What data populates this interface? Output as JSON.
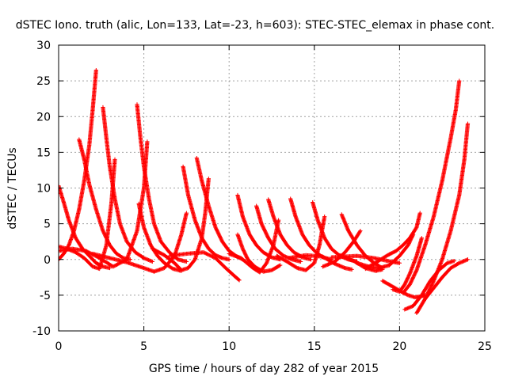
{
  "chart_data": {
    "type": "scatter",
    "title": "dSTEC Iono. truth (alic, Lon=133, Lat=-23, h=603): STEC-STEC_elemax in phase cont.",
    "xlabel": "GPS time / hours of day 282 of year 2015",
    "ylabel": "dSTEC  / TECUs",
    "xlim": [
      0,
      25
    ],
    "ylim": [
      -10,
      30
    ],
    "xticks": [
      0,
      5,
      10,
      15,
      20,
      25
    ],
    "yticks": [
      -10,
      -5,
      0,
      5,
      10,
      15,
      20,
      25,
      30
    ],
    "grid": true,
    "marker": "plus",
    "color": "#ff0000",
    "series": [
      {
        "x": [
          0,
          0.3,
          0.6,
          0.9,
          1.2,
          1.5,
          1.8,
          2.0,
          2.2
        ],
        "y": [
          0,
          0.8,
          2,
          4,
          7,
          11,
          16,
          21,
          26.5
        ]
      },
      {
        "x": [
          0,
          0.3,
          0.6,
          1.0,
          1.4,
          1.8,
          2.2,
          2.6,
          3.0
        ],
        "y": [
          10.3,
          8,
          5.5,
          3,
          1.5,
          0.5,
          -0.5,
          -1,
          -1.2
        ]
      },
      {
        "x": [
          1.2,
          1.5,
          1.8,
          2.2,
          2.6,
          3.0,
          3.4,
          3.8,
          4.2
        ],
        "y": [
          16.8,
          14,
          10.5,
          7,
          4,
          2,
          0.8,
          0.2,
          0
        ]
      },
      {
        "x": [
          2.6,
          2.8,
          3.0,
          3.3,
          3.6,
          4.0,
          4.5,
          5.0,
          5.5
        ],
        "y": [
          21.3,
          17,
          13,
          8.5,
          5,
          2.5,
          1,
          0.2,
          -0.3
        ]
      },
      {
        "x": [
          0,
          0.5,
          1.0,
          1.5,
          2.0,
          2.4,
          2.8,
          3.1,
          3.3
        ],
        "y": [
          1.8,
          1.5,
          1.0,
          0.2,
          -1,
          -1.3,
          2,
          8,
          14
        ]
      },
      {
        "x": [
          0,
          0.8,
          1.6,
          2.4,
          3.2,
          4.0,
          4.6,
          5.0,
          5.2
        ],
        "y": [
          1.2,
          1.5,
          1.2,
          0.2,
          -1,
          0,
          4,
          10,
          16.5
        ]
      },
      {
        "x": [
          4.6,
          4.8,
          5.0,
          5.3,
          5.6,
          6.0,
          6.5,
          7.0,
          7.5
        ],
        "y": [
          21.7,
          17,
          13,
          8.5,
          5,
          2.5,
          1,
          0,
          -0.3
        ]
      },
      {
        "x": [
          4.7,
          5.0,
          5.4,
          5.8,
          6.2,
          6.7,
          7.2
        ],
        "y": [
          7.8,
          4.5,
          2,
          0.5,
          -0.5,
          -1.3,
          -1.6
        ]
      },
      {
        "x": [
          2.0,
          3.0,
          4.0,
          5.0,
          5.6,
          6.2,
          6.8,
          7.2,
          7.5
        ],
        "y": [
          0.8,
          0.2,
          -0.4,
          -1.2,
          -1.7,
          -1.2,
          0.5,
          3.5,
          6.5
        ]
      },
      {
        "x": [
          7.3,
          7.6,
          8.0,
          8.4,
          8.8,
          9.2,
          9.6,
          10.0
        ],
        "y": [
          13,
          9,
          5.5,
          3,
          1.5,
          0.6,
          0.2,
          0
        ]
      },
      {
        "x": [
          8.1,
          8.4,
          8.8,
          9.2,
          9.6,
          10.0,
          10.4,
          10.8
        ],
        "y": [
          14.2,
          11,
          7.5,
          4.5,
          2.5,
          1.2,
          0.5,
          0
        ]
      },
      {
        "x": [
          5.5,
          6.2,
          6.8,
          7.2,
          7.6,
          8.0,
          8.4,
          8.6,
          8.8
        ],
        "y": [
          1.5,
          0.6,
          -0.5,
          -1.5,
          -1.2,
          0,
          3,
          6.5,
          11.3
        ]
      },
      {
        "x": [
          6.5,
          7.5,
          8.5,
          9.2,
          9.8,
          10.4,
          10.6
        ],
        "y": [
          0.5,
          0.8,
          1,
          0.2,
          -1.2,
          -2.5,
          -2.9
        ]
      },
      {
        "x": [
          10.5,
          10.8,
          11.2,
          11.6,
          12.0,
          12.5,
          13.0
        ],
        "y": [
          9,
          6,
          3.5,
          2,
          1,
          0.3,
          0
        ]
      },
      {
        "x": [
          10.5,
          10.8,
          11.1,
          11.5,
          12.0,
          12.5,
          13.0
        ],
        "y": [
          3.5,
          1.5,
          0,
          -1,
          -1.7,
          -1.5,
          -0.8
        ]
      },
      {
        "x": [
          11.6,
          11.9,
          12.3,
          12.7,
          13.2,
          13.7,
          14.2
        ],
        "y": [
          7.5,
          5,
          3,
          1.5,
          0.5,
          0,
          -0.3
        ]
      },
      {
        "x": [
          12.3,
          12.6,
          13.0,
          13.4,
          13.8,
          14.3,
          14.8
        ],
        "y": [
          8.4,
          6,
          3.5,
          2,
          1,
          0.3,
          0
        ]
      },
      {
        "x": [
          10.0,
          10.7,
          11.4,
          11.8,
          12.2,
          12.6,
          12.9
        ],
        "y": [
          0.8,
          0.2,
          -1.2,
          -1.8,
          -0.5,
          2,
          5.5
        ]
      },
      {
        "x": [
          13.6,
          13.9,
          14.3,
          14.7,
          15.1,
          15.5,
          16.0
        ],
        "y": [
          8.5,
          6,
          3.5,
          2,
          1,
          0.3,
          0
        ]
      },
      {
        "x": [
          12.8,
          13.4,
          14.0,
          14.5,
          15.0,
          15.3,
          15.6
        ],
        "y": [
          0.5,
          -0.3,
          -1.2,
          -1.5,
          -0.5,
          2,
          6
        ]
      },
      {
        "x": [
          14.9,
          15.2,
          15.6,
          16.0,
          16.5,
          17.0,
          17.5
        ],
        "y": [
          8,
          5.5,
          3,
          1.5,
          0.5,
          0,
          -0.3
        ]
      },
      {
        "x": [
          13.5,
          14.5,
          15.5,
          16.2,
          16.8,
          17.2
        ],
        "y": [
          0.2,
          0.6,
          0.4,
          -0.6,
          -1.2,
          -1.4
        ]
      },
      {
        "x": [
          16.6,
          17.0,
          17.5,
          18.0,
          18.5,
          19.0
        ],
        "y": [
          6.3,
          4,
          2,
          0.5,
          -0.5,
          -1.2
        ]
      },
      {
        "x": [
          15.5,
          16.2,
          16.8,
          17.3,
          17.7
        ],
        "y": [
          -1,
          -0.3,
          1,
          2.5,
          4
        ]
      },
      {
        "x": [
          16.5,
          17.3,
          18.0,
          18.6,
          19.0
        ],
        "y": [
          0.6,
          -0.2,
          -1.2,
          -1.6,
          -1.4
        ]
      },
      {
        "x": [
          17.5,
          18.2,
          18.8,
          19.4,
          20.0,
          20.5,
          20.8
        ],
        "y": [
          -0.5,
          -1,
          -1.2,
          -0.8,
          0.5,
          2,
          3.5
        ]
      },
      {
        "x": [
          16.0,
          17.5,
          18.5,
          19.5,
          20.0
        ],
        "y": [
          0.3,
          0.5,
          0.2,
          -0.3,
          -0.5
        ]
      },
      {
        "x": [
          18.0,
          18.7,
          19.3,
          19.8,
          20.2,
          20.6,
          21.0,
          21.2
        ],
        "y": [
          -1.3,
          -0.3,
          0.6,
          1.2,
          2,
          3,
          4.5,
          6.5
        ]
      },
      {
        "x": [
          19.0,
          19.6,
          20.1,
          20.5,
          20.9,
          21.2,
          21.5
        ],
        "y": [
          -3,
          -3.8,
          -4.5,
          -5,
          -5.3,
          -5.2,
          -5
        ]
      },
      {
        "x": [
          19.6,
          20.0,
          20.3,
          20.6,
          21.0,
          21.3
        ],
        "y": [
          -4.2,
          -4.5,
          -3.5,
          -2,
          0.5,
          3
        ]
      },
      {
        "x": [
          20.2,
          20.6,
          21.0,
          21.5,
          22.0,
          22.5,
          23.0,
          23.3,
          23.5
        ],
        "y": [
          -4.7,
          -3.5,
          -1.5,
          2,
          6,
          11,
          17,
          21,
          25
        ]
      },
      {
        "x": [
          20.3,
          20.8,
          21.3,
          21.8,
          22.3,
          22.8,
          23.2
        ],
        "y": [
          -7,
          -6.5,
          -5,
          -3,
          -1.5,
          -0.5,
          -0.2
        ]
      },
      {
        "x": [
          21.0,
          21.5,
          22.0,
          22.5,
          23.0,
          23.5,
          23.8,
          24.0
        ],
        "y": [
          -7.5,
          -5.5,
          -3,
          0,
          4,
          9,
          14,
          19
        ]
      },
      {
        "x": [
          21.5,
          22.0,
          22.5,
          23.0,
          23.5,
          24.0
        ],
        "y": [
          -5.5,
          -4,
          -2.5,
          -1.2,
          -0.5,
          0
        ]
      }
    ]
  }
}
